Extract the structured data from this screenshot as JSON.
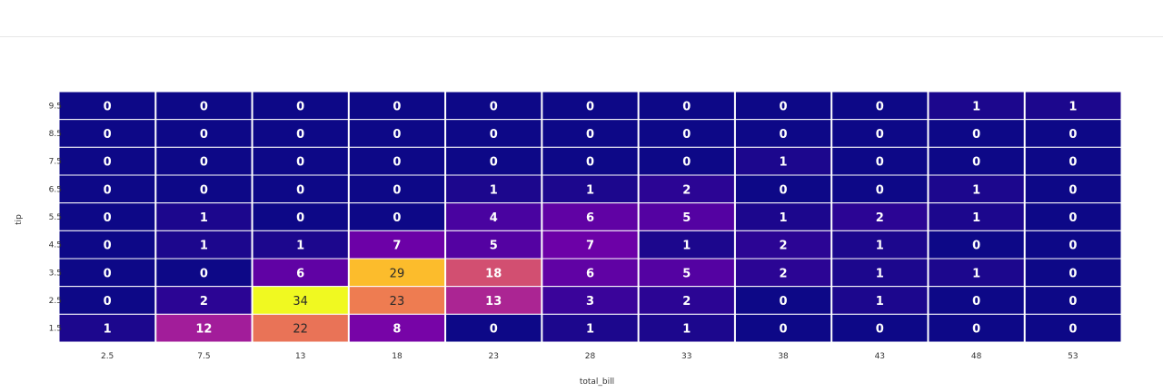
{
  "chart_data": {
    "type": "heatmap",
    "xlabel": "total_bill",
    "ylabel": "tip",
    "x_ticks": [
      "2.5",
      "7.5",
      "13",
      "18",
      "23",
      "28",
      "33",
      "38",
      "43",
      "48",
      "53"
    ],
    "y_ticks": [
      "9.5",
      "8.5",
      "7.5",
      "6.5",
      "5.5",
      "4.5",
      "3.5",
      "2.5",
      "1.5"
    ],
    "values": [
      [
        0,
        0,
        0,
        0,
        0,
        0,
        0,
        0,
        0,
        1,
        1
      ],
      [
        0,
        0,
        0,
        0,
        0,
        0,
        0,
        0,
        0,
        0,
        0
      ],
      [
        0,
        0,
        0,
        0,
        0,
        0,
        0,
        1,
        0,
        0,
        0
      ],
      [
        0,
        0,
        0,
        0,
        1,
        1,
        2,
        0,
        0,
        1,
        0
      ],
      [
        0,
        1,
        0,
        0,
        4,
        6,
        5,
        1,
        2,
        1,
        0
      ],
      [
        0,
        1,
        1,
        7,
        5,
        7,
        1,
        2,
        1,
        0,
        0
      ],
      [
        0,
        0,
        6,
        29,
        18,
        6,
        5,
        2,
        1,
        1,
        0
      ],
      [
        0,
        2,
        34,
        23,
        13,
        3,
        2,
        0,
        1,
        0,
        0
      ],
      [
        1,
        12,
        22,
        8,
        0,
        1,
        1,
        0,
        0,
        0,
        0
      ]
    ],
    "colorscale": "plasma",
    "zmin": 0,
    "zmax": 34
  }
}
